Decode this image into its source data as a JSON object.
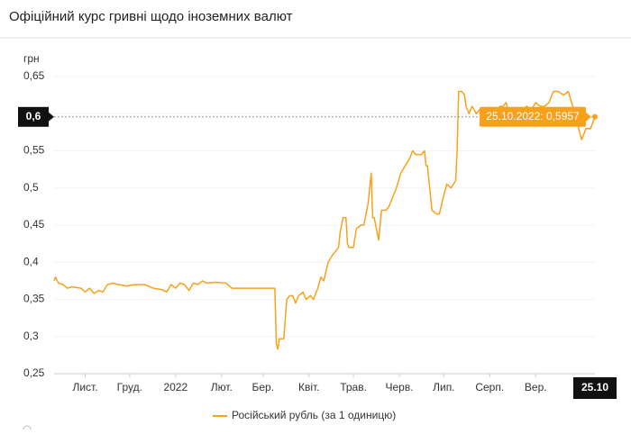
{
  "chart_data": {
    "type": "line",
    "title": "Офіційний курс гривні щодо іноземних валют",
    "y_label": "грн",
    "x": [
      0,
      1,
      3,
      6,
      9,
      12,
      18,
      21,
      24,
      27,
      30,
      33,
      36,
      40,
      43,
      49,
      55,
      61,
      67,
      73,
      76,
      79,
      82,
      85,
      88,
      91,
      94,
      97,
      100,
      103,
      109,
      116,
      120,
      125,
      149,
      150,
      151,
      152,
      155,
      157,
      159,
      161,
      163,
      165,
      168,
      170,
      173,
      175,
      178,
      180,
      182,
      185,
      188,
      192,
      193,
      195,
      197,
      198,
      199,
      202,
      204,
      207,
      209,
      212,
      213,
      214,
      215,
      216,
      218,
      219,
      221,
      224,
      226,
      229,
      231,
      234,
      237,
      240,
      242,
      244,
      248,
      250,
      251,
      252,
      255,
      258,
      260,
      263,
      265,
      268,
      271,
      272,
      273,
      275,
      277,
      278,
      280,
      282,
      285,
      287,
      289,
      292,
      295,
      298,
      301,
      303,
      305,
      307,
      310,
      313,
      316,
      319,
      322,
      325,
      328,
      331,
      334,
      337,
      340,
      344,
      347,
      350,
      353,
      354,
      356,
      359,
      362,
      365
    ],
    "series": [
      {
        "name": "Російський рубль (за 1 одиницю)",
        "color": "#f7a11a",
        "values": [
          0.375,
          0.38,
          0.372,
          0.37,
          0.365,
          0.367,
          0.365,
          0.36,
          0.365,
          0.358,
          0.362,
          0.36,
          0.37,
          0.372,
          0.37,
          0.368,
          0.37,
          0.37,
          0.365,
          0.363,
          0.36,
          0.37,
          0.365,
          0.372,
          0.37,
          0.362,
          0.372,
          0.37,
          0.375,
          0.372,
          0.373,
          0.372,
          0.365,
          0.365,
          0.365,
          0.29,
          0.283,
          0.297,
          0.297,
          0.35,
          0.355,
          0.355,
          0.345,
          0.355,
          0.36,
          0.35,
          0.355,
          0.35,
          0.365,
          0.38,
          0.375,
          0.4,
          0.41,
          0.42,
          0.44,
          0.46,
          0.46,
          0.425,
          0.42,
          0.42,
          0.445,
          0.45,
          0.45,
          0.48,
          0.5,
          0.52,
          0.46,
          0.46,
          0.44,
          0.43,
          0.47,
          0.47,
          0.475,
          0.49,
          0.5,
          0.52,
          0.53,
          0.54,
          0.55,
          0.545,
          0.545,
          0.55,
          0.53,
          0.53,
          0.47,
          0.465,
          0.465,
          0.49,
          0.505,
          0.5,
          0.51,
          0.55,
          0.63,
          0.63,
          0.625,
          0.61,
          0.6,
          0.61,
          0.6,
          0.605,
          0.6,
          0.605,
          0.6,
          0.6,
          0.61,
          0.61,
          0.615,
          0.6,
          0.605,
          0.6,
          0.605,
          0.61,
          0.605,
          0.615,
          0.61,
          0.61,
          0.615,
          0.63,
          0.63,
          0.625,
          0.63,
          0.61,
          0.6,
          0.58,
          0.565,
          0.58,
          0.58,
          0.5957
        ]
      }
    ],
    "xlim": [
      0,
      365
    ],
    "xticks": [
      {
        "value": 21,
        "label": "Лист."
      },
      {
        "value": 51,
        "label": "Груд."
      },
      {
        "value": 82,
        "label": "2022"
      },
      {
        "value": 113,
        "label": "Лют."
      },
      {
        "value": 141,
        "label": "Бер."
      },
      {
        "value": 172,
        "label": "Квіт."
      },
      {
        "value": 202,
        "label": "Трав."
      },
      {
        "value": 233,
        "label": "Черв."
      },
      {
        "value": 263,
        "label": "Лип."
      },
      {
        "value": 294,
        "label": "Серп."
      },
      {
        "value": 325,
        "label": "Вер."
      }
    ],
    "ylim": [
      0.25,
      0.65
    ],
    "yticks": [
      {
        "value": 0.25,
        "label": "0,25"
      },
      {
        "value": 0.3,
        "label": "0,3"
      },
      {
        "value": 0.35,
        "label": "0,35"
      },
      {
        "value": 0.4,
        "label": "0,4"
      },
      {
        "value": 0.45,
        "label": "0,45"
      },
      {
        "value": 0.5,
        "label": "0,5"
      },
      {
        "value": 0.55,
        "label": "0,55"
      },
      {
        "value": 0.6,
        "label": "0,6"
      },
      {
        "value": 0.65,
        "label": "0,65"
      }
    ],
    "hover": {
      "x": 365,
      "y": 0.5957,
      "label": "25.10.2022: 0,5957",
      "x_label": "25.10",
      "y_label": "0,6"
    }
  }
}
